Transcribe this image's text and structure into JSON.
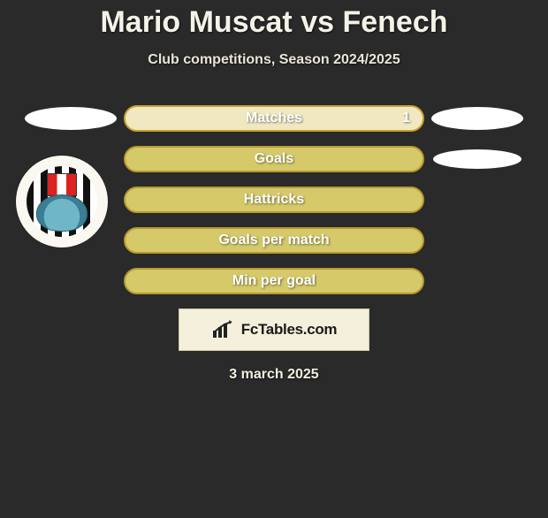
{
  "title": "Mario Muscat vs Fenech",
  "subtitle": "Club competitions, Season 2024/2025",
  "date": "3 march 2025",
  "brand": "FcTables.com",
  "colors": {
    "background": "#2a2a2a",
    "title_color": "#f5f2e8",
    "brand_box_bg": "#f4f0db",
    "brand_box_border": "#cfc9a8",
    "placeholder_ellipse": "#ffffff"
  },
  "stats": [
    {
      "label": "Matches",
      "left_value": null,
      "right_value": "1",
      "bar_bg": "#f0e8c0",
      "bar_border": "#c8a030",
      "left_placeholder": "ellipse",
      "right_placeholder": "ellipse"
    },
    {
      "label": "Goals",
      "left_value": null,
      "right_value": null,
      "bar_bg": "#d5c96a",
      "bar_border": "#b79a2e",
      "left_placeholder": "crest",
      "right_placeholder": "ellipse-small"
    },
    {
      "label": "Hattricks",
      "left_value": null,
      "right_value": null,
      "bar_bg": "#d5c96a",
      "bar_border": "#b79a2e",
      "left_placeholder": null,
      "right_placeholder": null
    },
    {
      "label": "Goals per match",
      "left_value": null,
      "right_value": null,
      "bar_bg": "#d5c96a",
      "bar_border": "#b79a2e",
      "left_placeholder": null,
      "right_placeholder": null
    },
    {
      "label": "Min per goal",
      "left_value": null,
      "right_value": null,
      "bar_bg": "#d5c96a",
      "bar_border": "#b79a2e",
      "left_placeholder": null,
      "right_placeholder": null
    }
  ],
  "crest": {
    "outer_bg": "#faf8f0",
    "stripe_dark": "#111111",
    "stripe_light": "#ffffff",
    "shield_colors": [
      "#d22222",
      "#ffffff"
    ],
    "peacock_color": "#6fb6c9"
  }
}
